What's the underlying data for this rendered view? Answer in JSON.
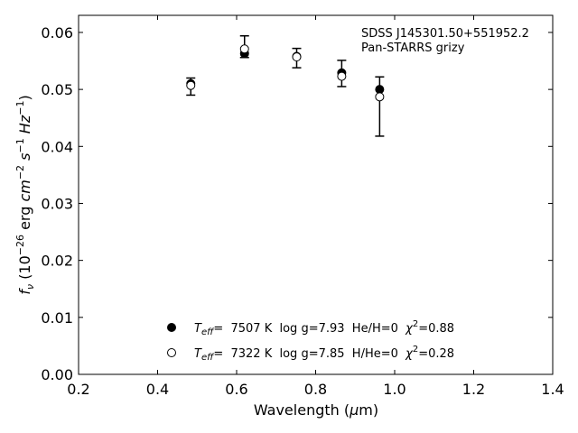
{
  "chart_data": {
    "type": "scatter",
    "xlabel": "Wavelength (μm)",
    "ylabel": "f_ν (10^-26 erg cm^-2 s^-1 Hz^-1)",
    "xlim": [
      0.2,
      1.4
    ],
    "ylim": [
      0.0,
      0.063
    ],
    "xticks": [
      "0.2",
      "0.4",
      "0.6",
      "0.8",
      "1.0",
      "1.2",
      "1.4"
    ],
    "yticks": [
      "0.00",
      "0.01",
      "0.02",
      "0.03",
      "0.04",
      "0.05",
      "0.06"
    ],
    "annotation": [
      "SDSS J145301.50+551952.2",
      "Pan-STARRS grizy"
    ],
    "observed": {
      "x": [
        0.484,
        0.62,
        0.752,
        0.866,
        0.962
      ],
      "y": [
        0.0505,
        0.0575,
        0.0555,
        0.0528,
        0.047
      ],
      "yerr": [
        0.0015,
        0.0019,
        0.0017,
        0.0023,
        0.0052
      ]
    },
    "series": [
      {
        "name": "Teff= 7507 K log g=7.93 He/H=0 χ2=0.88",
        "marker": "filled-circle",
        "x": [
          0.484,
          0.62,
          0.752,
          0.866,
          0.962
        ],
        "y": [
          0.051,
          0.0563,
          0.0558,
          0.0529,
          0.05
        ]
      },
      {
        "name": "Teff= 7322 K log g=7.85 H/He=0 χ2=0.28",
        "marker": "open-circle",
        "x": [
          0.484,
          0.62,
          0.752,
          0.866,
          0.962
        ],
        "y": [
          0.0507,
          0.0571,
          0.0557,
          0.0523,
          0.0487
        ]
      }
    ],
    "legend": [
      {
        "teff_label": "T",
        "teff_sub": "eff",
        "rest": "=  7507 K  log g=7.93  He/H=0  ",
        "chi": "χ",
        "chi_sup": "2",
        "chi_rest": "=0.88"
      },
      {
        "teff_label": "T",
        "teff_sub": "eff",
        "rest": "=  7322 K  log g=7.85  H/He=0  ",
        "chi": "χ",
        "chi_sup": "2",
        "chi_rest": "=0.28"
      }
    ],
    "legend_placement": "lower-center",
    "grid": false
  }
}
